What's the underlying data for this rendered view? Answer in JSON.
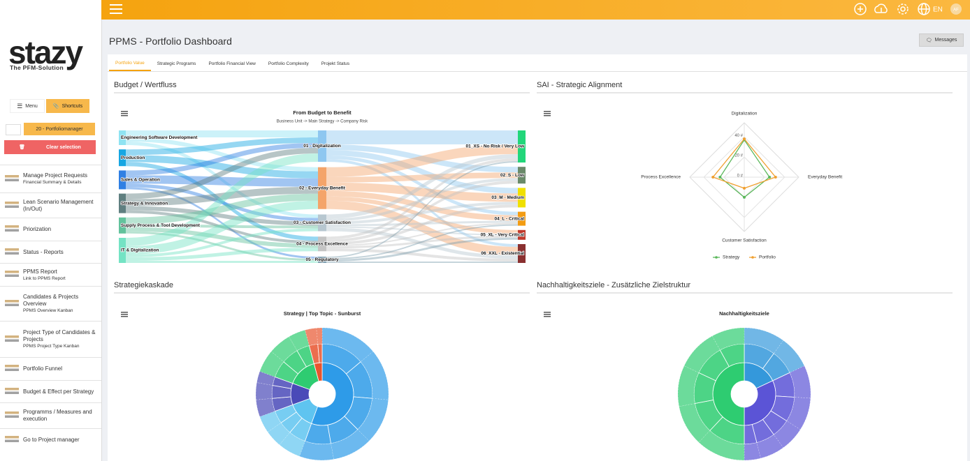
{
  "header": {
    "language": "EN",
    "avatar": "AF"
  },
  "sidebar": {
    "logo": "stazy",
    "tagline": "The PFM-Solution",
    "menu_button": "Menu",
    "shortcuts_button": "Shortcuts",
    "portfolio": "20 - Portfoliomanager",
    "clear_button": "Clear selection",
    "items": [
      {
        "title": "Manage Project Requests",
        "subtitle": "Financial Summary & Details"
      },
      {
        "title": "Lean Scenario Management (In/Out)"
      },
      {
        "title": "Priorization"
      },
      {
        "title": "Status - Reports"
      },
      {
        "title": "PPMS Report",
        "subtitle": "Link to PPMS Report"
      },
      {
        "title": "Candidates & Projects Overview",
        "subtitle": "PPMS Overview Kanban"
      },
      {
        "title": "Project Type of Candidates & Projects",
        "subtitle": "PPMS Project Type Kanban"
      },
      {
        "title": "Portfolio Funnel"
      },
      {
        "title": "Budget & Effect per Strategy"
      },
      {
        "title": "Programms / Measures and execution"
      },
      {
        "title": "Go to Project manager"
      }
    ]
  },
  "page": {
    "title": "PPMS - Portfolio Dashboard",
    "messages_button": "Messages",
    "tabs": [
      "Portfolio Value",
      "Strategic Programs",
      "Portfolio Financial View",
      "Portfolio Complexity",
      "Projekt Status"
    ]
  },
  "sankey": {
    "section_title": "Budget / Wertfluss",
    "title": "From Budget to Benefit",
    "subtitle": "Business Unit -> Main Strategy -> Company Risk",
    "nodes": [
      {
        "name": "Engineering Software Development",
        "color": "#8fe3f2"
      },
      {
        "name": "Production",
        "color": "#16a6e2"
      },
      {
        "name": "Sales & Operation",
        "color": "#2f7fe3"
      },
      {
        "name": "Strategy & Innovation",
        "color": "#5f7f80"
      },
      {
        "name": "Supply Process & Tool Development",
        "color": "#62c29c"
      },
      {
        "name": "IT & Digitalization",
        "color": "#74e3c4"
      },
      {
        "name": "01 - Digitalization",
        "color": "#8ec7f0"
      },
      {
        "name": "02 - Everyday Benefit",
        "color": "#f4a46a"
      },
      {
        "name": "03 - Customer Satisfaction",
        "color": "#b7c7d0"
      },
      {
        "name": "04 - Process Excellence",
        "color": "#c4c4c4"
      },
      {
        "name": "05 - Regulatory",
        "color": "#7f9fb0"
      },
      {
        "name": "01_XS - No Risk / Very Low",
        "color": "#22d67a"
      },
      {
        "name": "02_S - Low",
        "color": "#6a8a6a"
      },
      {
        "name": "03_M - Medium",
        "color": "#f0e000"
      },
      {
        "name": "04_L - Critical",
        "color": "#f39c12"
      },
      {
        "name": "05_XL - Very Critical",
        "color": "#c0392b"
      },
      {
        "name": "06_XXL - Existential",
        "color": "#8a3030"
      }
    ],
    "links": [
      {
        "source": 0,
        "target": 6,
        "value": 10
      },
      {
        "source": 0,
        "target": 7,
        "value": 6
      },
      {
        "source": 0,
        "target": 8,
        "value": 5
      },
      {
        "source": 1,
        "target": 6,
        "value": 8
      },
      {
        "source": 1,
        "target": 7,
        "value": 10
      },
      {
        "source": 1,
        "target": 9,
        "value": 6
      },
      {
        "source": 2,
        "target": 6,
        "value": 7
      },
      {
        "source": 2,
        "target": 7,
        "value": 12
      },
      {
        "source": 2,
        "target": 8,
        "value": 5
      },
      {
        "source": 2,
        "target": 10,
        "value": 3
      },
      {
        "source": 3,
        "target": 6,
        "value": 8
      },
      {
        "source": 3,
        "target": 7,
        "value": 10
      },
      {
        "source": 3,
        "target": 8,
        "value": 6
      },
      {
        "source": 3,
        "target": 9,
        "value": 4
      },
      {
        "source": 4,
        "target": 7,
        "value": 10
      },
      {
        "source": 4,
        "target": 8,
        "value": 4
      },
      {
        "source": 4,
        "target": 9,
        "value": 6
      },
      {
        "source": 4,
        "target": 10,
        "value": 3
      },
      {
        "source": 5,
        "target": 6,
        "value": 12
      },
      {
        "source": 5,
        "target": 7,
        "value": 12
      },
      {
        "source": 5,
        "target": 8,
        "value": 4
      },
      {
        "source": 5,
        "target": 9,
        "value": 5
      },
      {
        "source": 5,
        "target": 10,
        "value": 3
      },
      {
        "source": 6,
        "target": 11,
        "value": 20
      },
      {
        "source": 6,
        "target": 12,
        "value": 8
      },
      {
        "source": 6,
        "target": 13,
        "value": 8
      },
      {
        "source": 6,
        "target": 14,
        "value": 5
      },
      {
        "source": 6,
        "target": 16,
        "value": 4
      },
      {
        "source": 7,
        "target": 11,
        "value": 14
      },
      {
        "source": 7,
        "target": 12,
        "value": 8
      },
      {
        "source": 7,
        "target": 13,
        "value": 12
      },
      {
        "source": 7,
        "target": 14,
        "value": 8
      },
      {
        "source": 7,
        "target": 15,
        "value": 6
      },
      {
        "source": 7,
        "target": 16,
        "value": 12
      },
      {
        "source": 8,
        "target": 11,
        "value": 6
      },
      {
        "source": 8,
        "target": 12,
        "value": 4
      },
      {
        "source": 8,
        "target": 13,
        "value": 4
      },
      {
        "source": 8,
        "target": 14,
        "value": 3
      },
      {
        "source": 8,
        "target": 15,
        "value": 2
      },
      {
        "source": 8,
        "target": 16,
        "value": 5
      },
      {
        "source": 9,
        "target": 11,
        "value": 4
      },
      {
        "source": 9,
        "target": 12,
        "value": 4
      },
      {
        "source": 9,
        "target": 13,
        "value": 4
      },
      {
        "source": 9,
        "target": 14,
        "value": 2
      },
      {
        "source": 9,
        "target": 15,
        "value": 3
      },
      {
        "source": 9,
        "target": 16,
        "value": 4
      },
      {
        "source": 10,
        "target": 11,
        "value": 2
      },
      {
        "source": 10,
        "target": 14,
        "value": 2
      },
      {
        "source": 10,
        "target": 15,
        "value": 3
      },
      {
        "source": 10,
        "target": 16,
        "value": 2
      }
    ]
  },
  "radar": {
    "section_title": "SAI - Strategic Alignment",
    "axes": [
      "Digitalization",
      "Everyday Benefit",
      "Customer Satisfaction",
      "Process Excellence"
    ],
    "rlim": [
      0,
      54
    ],
    "rticks": [
      {
        "value": 0,
        "label": "0 #"
      },
      {
        "value": 20,
        "label": "20 #"
      },
      {
        "value": 40,
        "label": "40 #"
      }
    ],
    "series": [
      {
        "name": "Strategy",
        "color": "#5cb85c",
        "values": [
          37,
          25,
          20,
          24
        ]
      },
      {
        "name": "Portfolio",
        "color": "#f0a030",
        "values": [
          38,
          31,
          11,
          31
        ]
      }
    ]
  },
  "sunbursts": [
    {
      "section_title": "Strategiekaskade",
      "title": "Strategy | Top Topic - Sunburst",
      "segments": [
        {
          "color": "#2e9be8",
          "value": 40,
          "children": [
            10,
            9,
            8,
            7,
            6
          ]
        },
        {
          "color": "#5fc4f0",
          "value": 10,
          "children": [
            4,
            3,
            3
          ]
        },
        {
          "color": "#4a4ab8",
          "value": 8,
          "children": [
            3,
            3,
            2
          ]
        },
        {
          "color": "#2ecc71",
          "value": 11,
          "children": [
            4,
            4,
            3
          ]
        },
        {
          "color": "#e8552f",
          "value": 3,
          "children": [
            2,
            1
          ]
        }
      ]
    },
    {
      "section_title": "Nachhaltigkeitsziele - Zusätzliche Zielstruktur",
      "title": "Nachhaltigkeitsziele",
      "segments": [
        {
          "color": "#3498db",
          "value": 9,
          "children": [
            5,
            4
          ]
        },
        {
          "color": "#5b54d6",
          "value": 16,
          "children": [
            4,
            4,
            3,
            3,
            2
          ]
        },
        {
          "color": "#2ecc71",
          "value": 25,
          "children": [
            6,
            5,
            5,
            5,
            4
          ]
        }
      ]
    }
  ]
}
